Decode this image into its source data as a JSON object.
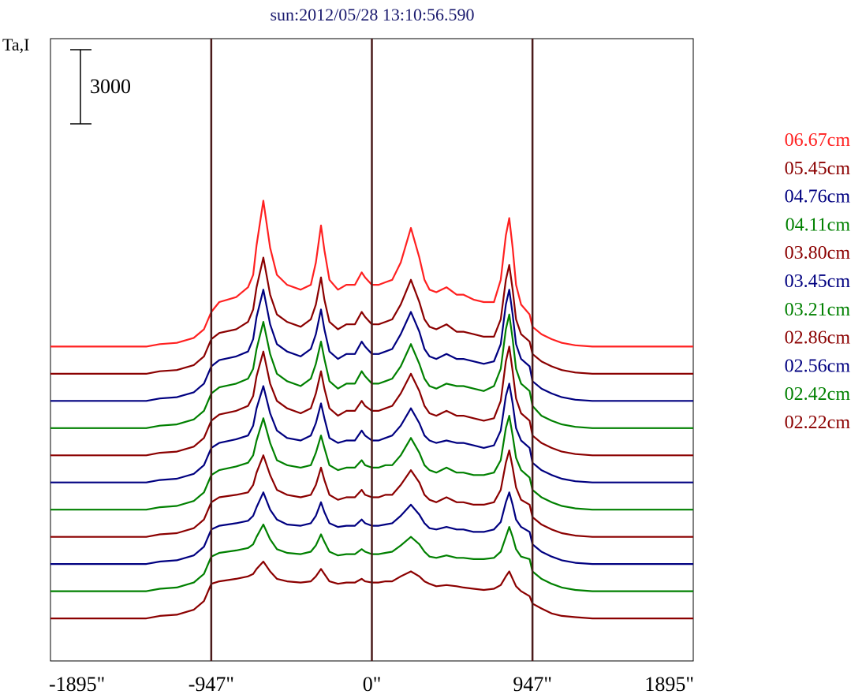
{
  "title": "sun:2012/05/28 13:10:56.590",
  "y_axis_label": "Ta,I",
  "scale_bar_label": "3000",
  "x_tick_labels": [
    "-1895\"",
    "-947\"",
    "0\"",
    "947\"",
    "1895\""
  ],
  "colors": {
    "red": "#ff2020",
    "maroon": "#8b0000",
    "navy": "#000080",
    "green": "#008000",
    "frame": "#000000",
    "vline": "#4a1a1a",
    "title": "#1a1a6e"
  },
  "chart_data": {
    "type": "line",
    "title": "sun:2012/05/28 13:10:56.590",
    "ylabel": "Ta,I",
    "xlim": [
      -1895,
      1895
    ],
    "x_ticks": [
      -1895,
      -947,
      0,
      947,
      1895
    ],
    "vertical_lines": [
      -947,
      0,
      947
    ],
    "scale_bar": 3000,
    "grid": false,
    "legend_placement": "right",
    "profile_x": [
      -1895,
      -1330,
      -1250,
      -1150,
      -1050,
      -990,
      -947,
      -900,
      -800,
      -730,
      -700,
      -680,
      -640,
      -600,
      -560,
      -500,
      -420,
      -360,
      -330,
      -300,
      -280,
      -250,
      -200,
      -150,
      -100,
      -60,
      -40,
      0,
      40,
      80,
      120,
      170,
      230,
      280,
      310,
      340,
      380,
      440,
      500,
      540,
      600,
      660,
      720,
      760,
      790,
      810,
      830,
      850,
      880,
      930,
      947,
      1000,
      1060,
      1120,
      1200,
      1300,
      1895
    ],
    "series": [
      {
        "name": "06.67cm",
        "color": "red",
        "offset": 11700,
        "values": [
          0,
          0,
          100,
          150,
          350,
          700,
          1400,
          1800,
          2000,
          2400,
          2900,
          4100,
          5900,
          4000,
          2900,
          2500,
          2300,
          2500,
          3400,
          4900,
          3900,
          2700,
          2300,
          2500,
          2500,
          3000,
          2800,
          2500,
          2500,
          2600,
          2700,
          3400,
          4800,
          3600,
          2700,
          2300,
          2200,
          2400,
          2100,
          2100,
          1900,
          1800,
          1800,
          2700,
          4500,
          5200,
          4000,
          2500,
          1700,
          1300,
          800,
          500,
          300,
          150,
          50,
          0,
          0
        ]
      },
      {
        "name": "05.45cm",
        "color": "maroon",
        "offset": 10600,
        "values": [
          0,
          0,
          100,
          150,
          350,
          700,
          1400,
          1650,
          1800,
          2100,
          2600,
          3500,
          4700,
          3200,
          2400,
          2100,
          1900,
          2200,
          2800,
          3900,
          3000,
          2100,
          1800,
          2000,
          2000,
          2500,
          2300,
          2000,
          2000,
          2100,
          2200,
          2800,
          3800,
          2900,
          2200,
          1900,
          1800,
          2000,
          1700,
          1700,
          1600,
          1500,
          1500,
          2200,
          3800,
          4400,
          3400,
          2200,
          1600,
          1300,
          800,
          500,
          300,
          150,
          50,
          0,
          0
        ]
      },
      {
        "name": "04.76cm",
        "color": "navy",
        "offset": 9500,
        "values": [
          0,
          0,
          100,
          150,
          350,
          700,
          1400,
          1650,
          1800,
          2000,
          2500,
          3400,
          4500,
          3100,
          2300,
          2000,
          1800,
          2100,
          2700,
          3700,
          2900,
          2000,
          1700,
          1900,
          1900,
          2400,
          2200,
          1900,
          1900,
          2000,
          2100,
          2700,
          3600,
          2800,
          2100,
          1800,
          1700,
          1900,
          1700,
          1700,
          1600,
          1500,
          1600,
          2300,
          3900,
          4500,
          3500,
          2300,
          1700,
          1400,
          800,
          500,
          300,
          150,
          50,
          0,
          0
        ]
      },
      {
        "name": "04.11cm",
        "color": "green",
        "offset": 8400,
        "values": [
          0,
          0,
          100,
          150,
          350,
          700,
          1400,
          1650,
          1800,
          2000,
          2400,
          3200,
          4300,
          3000,
          2200,
          1900,
          1700,
          2000,
          2600,
          3500,
          2800,
          1900,
          1600,
          1800,
          1800,
          2300,
          2100,
          1800,
          1800,
          1900,
          2000,
          2500,
          3400,
          2600,
          2000,
          1700,
          1600,
          1800,
          1700,
          1700,
          1600,
          1500,
          1700,
          2400,
          4000,
          4600,
          3600,
          2400,
          1800,
          1500,
          900,
          500,
          300,
          150,
          50,
          0,
          0
        ]
      },
      {
        "name": "03.80cm",
        "color": "maroon",
        "offset": 7300,
        "values": [
          0,
          0,
          100,
          150,
          350,
          700,
          1400,
          1650,
          1800,
          2000,
          2400,
          3200,
          4200,
          2900,
          2200,
          1900,
          1700,
          1900,
          2500,
          3400,
          2700,
          1900,
          1600,
          1800,
          1800,
          2200,
          2000,
          1800,
          1800,
          1900,
          2000,
          2500,
          3300,
          2600,
          2000,
          1700,
          1600,
          1800,
          1600,
          1600,
          1500,
          1400,
          1500,
          2200,
          3800,
          4400,
          3400,
          2300,
          1700,
          1400,
          800,
          500,
          300,
          150,
          50,
          0,
          0
        ]
      },
      {
        "name": "03.45cm",
        "color": "navy",
        "offset": 6200,
        "values": [
          0,
          0,
          100,
          150,
          350,
          700,
          1400,
          1600,
          1750,
          1900,
          2300,
          3000,
          3900,
          2800,
          2100,
          1800,
          1700,
          1900,
          2400,
          3200,
          2600,
          1800,
          1600,
          1700,
          1700,
          2100,
          1900,
          1700,
          1700,
          1800,
          1900,
          2300,
          3000,
          2400,
          1900,
          1700,
          1600,
          1700,
          1600,
          1600,
          1500,
          1400,
          1500,
          2100,
          3500,
          4000,
          3200,
          2200,
          1700,
          1400,
          800,
          500,
          300,
          150,
          50,
          0,
          0
        ]
      },
      {
        "name": "03.21cm",
        "color": "green",
        "offset": 5100,
        "values": [
          0,
          0,
          100,
          150,
          350,
          700,
          1400,
          1600,
          1750,
          1900,
          2200,
          2800,
          3700,
          2700,
          2000,
          1800,
          1700,
          1800,
          2300,
          3000,
          2500,
          1800,
          1600,
          1700,
          1700,
          2000,
          1800,
          1700,
          1700,
          1800,
          1800,
          2200,
          2900,
          2300,
          1800,
          1600,
          1500,
          1700,
          1500,
          1500,
          1400,
          1400,
          1500,
          2000,
          3300,
          3800,
          3000,
          2100,
          1600,
          1300,
          800,
          500,
          300,
          150,
          50,
          0,
          0
        ]
      },
      {
        "name": "02.86cm",
        "color": "maroon",
        "offset": 4000,
        "values": [
          0,
          0,
          100,
          150,
          350,
          700,
          1400,
          1600,
          1700,
          1800,
          2100,
          2600,
          3300,
          2500,
          1900,
          1700,
          1600,
          1700,
          2100,
          2800,
          2300,
          1700,
          1500,
          1600,
          1600,
          1900,
          1700,
          1600,
          1600,
          1700,
          1700,
          2100,
          2700,
          2200,
          1700,
          1500,
          1400,
          1600,
          1400,
          1400,
          1300,
          1300,
          1400,
          1900,
          3000,
          3500,
          2800,
          2000,
          1500,
          1300,
          800,
          500,
          300,
          150,
          50,
          0,
          0
        ]
      },
      {
        "name": "02.56cm",
        "color": "navy",
        "offset": 2900,
        "values": [
          0,
          0,
          100,
          150,
          350,
          700,
          1400,
          1550,
          1650,
          1750,
          1950,
          2300,
          2900,
          2200,
          1800,
          1600,
          1550,
          1650,
          1950,
          2500,
          2100,
          1650,
          1500,
          1550,
          1550,
          1800,
          1650,
          1550,
          1550,
          1600,
          1650,
          1950,
          2400,
          2000,
          1650,
          1450,
          1400,
          1500,
          1400,
          1400,
          1300,
          1300,
          1400,
          1700,
          2500,
          2900,
          2400,
          1800,
          1500,
          1300,
          800,
          500,
          300,
          150,
          50,
          0,
          0
        ]
      },
      {
        "name": "02.42cm",
        "color": "green",
        "offset": 1800,
        "values": [
          0,
          0,
          100,
          150,
          350,
          700,
          1400,
          1550,
          1650,
          1750,
          1900,
          2200,
          2700,
          2100,
          1700,
          1550,
          1500,
          1600,
          1850,
          2300,
          2000,
          1600,
          1450,
          1500,
          1500,
          1700,
          1600,
          1500,
          1500,
          1550,
          1600,
          1850,
          2200,
          1900,
          1600,
          1400,
          1350,
          1450,
          1350,
          1350,
          1300,
          1300,
          1350,
          1600,
          2200,
          2600,
          2200,
          1700,
          1400,
          1300,
          800,
          500,
          300,
          150,
          50,
          0,
          0
        ]
      },
      {
        "name": "02.22cm",
        "color": "maroon",
        "offset": 700,
        "values": [
          0,
          0,
          100,
          150,
          350,
          700,
          1400,
          1500,
          1600,
          1700,
          1800,
          2000,
          2300,
          1900,
          1600,
          1500,
          1450,
          1500,
          1700,
          2000,
          1800,
          1500,
          1400,
          1450,
          1450,
          1600,
          1500,
          1450,
          1450,
          1500,
          1500,
          1700,
          1900,
          1700,
          1500,
          1400,
          1300,
          1350,
          1300,
          1250,
          1200,
          1150,
          1200,
          1350,
          1700,
          1900,
          1600,
          1300,
          1100,
          900,
          600,
          400,
          200,
          100,
          50,
          0,
          0
        ]
      }
    ]
  }
}
